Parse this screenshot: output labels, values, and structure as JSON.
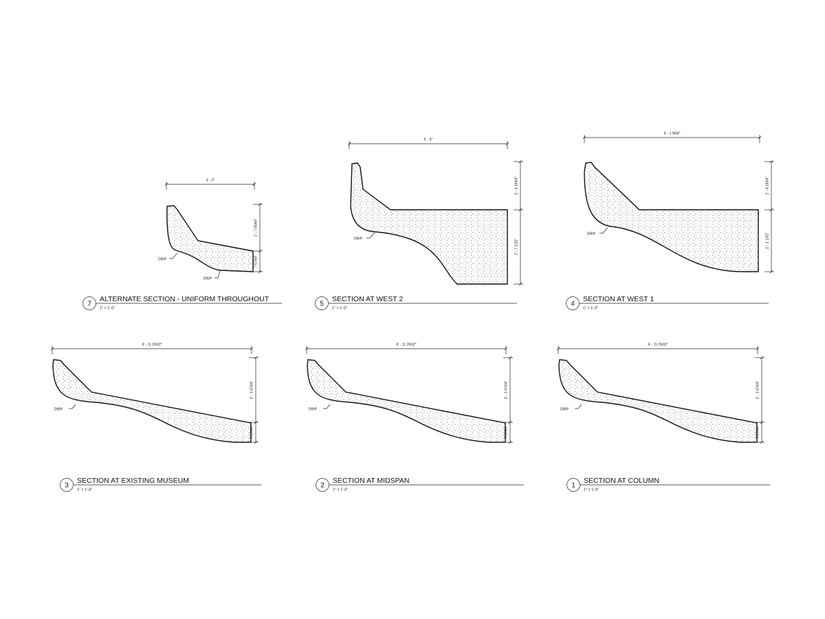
{
  "sections": [
    {
      "number": "7",
      "title": "ALTERNATE SECTION - UNIFORM THROUGHOUT",
      "scale": "1\" = 1'-0\"",
      "top_dimension": "3' - 0\"",
      "right_dimensions": [
        "1' - 7 55/64\"",
        "7 57/64\""
      ],
      "drips": [
        "DRIP",
        "DRIP"
      ]
    },
    {
      "number": "5",
      "title": "SECTION AT WEST 2",
      "scale": "1\" = 1'-0\"",
      "top_dimension": "5' - 6\"",
      "right_dimensions": [
        "1' - 8 19/64\"",
        "2' - 7 1/32\""
      ],
      "drips": [
        "DRIP"
      ]
    },
    {
      "number": "4",
      "title": "SECTION AT WEST 1",
      "scale": "1\" = 1'-0\"",
      "top_dimension": "6' - 1 9/64\"",
      "right_dimensions": [
        "1' - 8 19/64\"",
        "2' - 1 1/32\""
      ],
      "drips": [
        "DRIP"
      ]
    },
    {
      "number": "3",
      "title": "SECTION AT EXISTING MUSEUM",
      "scale": "1\" = 1'-0\"",
      "top_dimension": "6' - 11 29/32\"",
      "right_dimensions": [
        "2' - 3 47/64\"",
        "7 57/64\""
      ],
      "drips": [
        "DRIP"
      ]
    },
    {
      "number": "2",
      "title": "SECTION AT MIDSPAN",
      "scale": "1\" = 1'-0\"",
      "top_dimension": "6' - 11 29/32\"",
      "right_dimensions": [
        "2' - 3 47/64\"",
        "7 57/64\""
      ],
      "drips": [
        "DRIP"
      ]
    },
    {
      "number": "1",
      "title": "SECTION AT COLUMN",
      "scale": "1\" = 1'-0\"",
      "top_dimension": "6' - 11 29/32\"",
      "right_dimensions": [
        "2' - 3 47/64\"",
        "7 57/64\""
      ],
      "drips": [
        "DRIP"
      ]
    }
  ]
}
